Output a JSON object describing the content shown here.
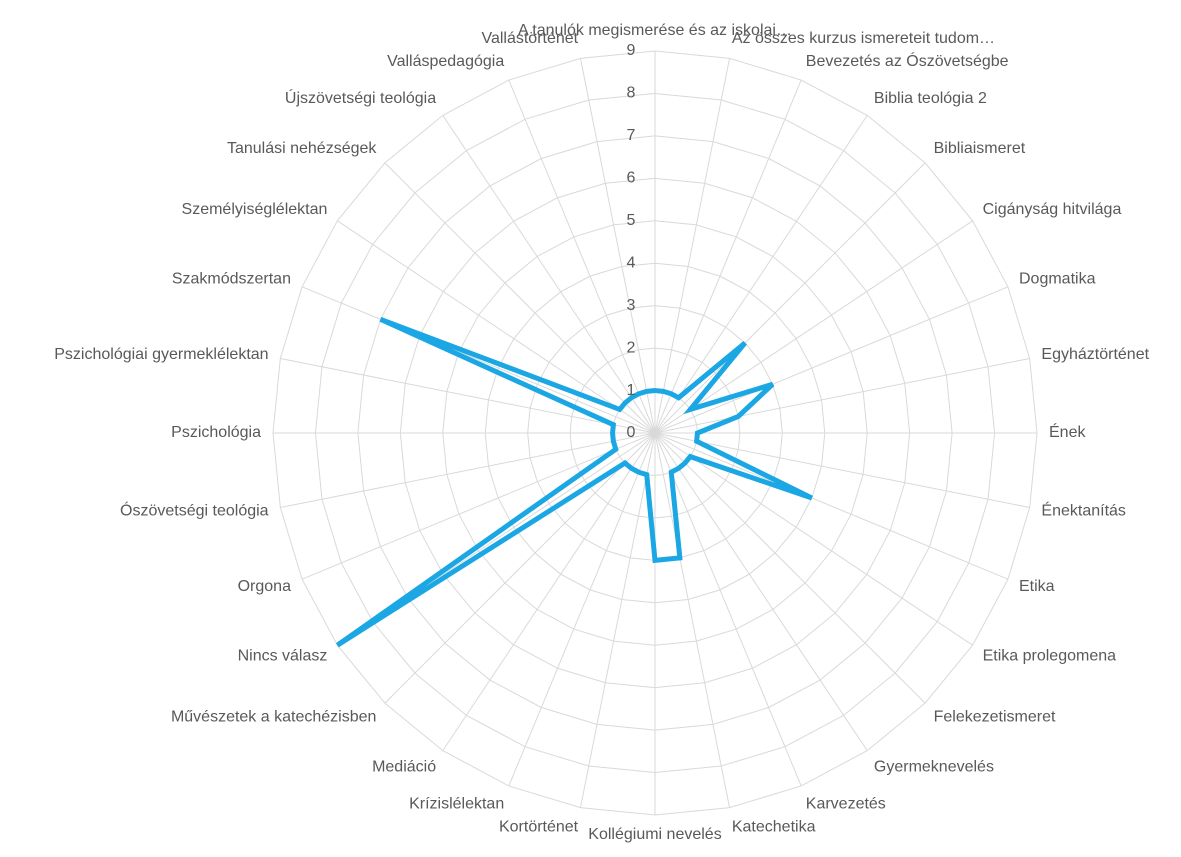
{
  "chart_data": {
    "type": "radar",
    "categories": [
      "A tanulók megismerése és az iskolai…",
      "Az összes kurzus ismereteit tudom…",
      "Bevezetés az Ószövetségbe",
      "Biblia teológia 2",
      "Bibliaismeret",
      "Cigányság hitvilága",
      "Dogmatika",
      "Egyháztörténet",
      "Ének",
      "Énektanítás",
      "Etika",
      "Etika prolegomena",
      "Felekezetismeret",
      "Gyermeknevelés",
      "Karvezetés",
      "Katechetika",
      "Kollégiumi nevelés",
      "Kortörténet",
      "Krízislélektan",
      "Mediáció",
      "Művészetek a katechézisben",
      "Nincs válasz",
      "Orgona",
      "Ószövetségi teológia",
      "Pszichológia",
      "Pszichológiai gyermeklélektan",
      "Szakmódszertan",
      "Személyiséglélektan",
      "Tanulási nehézségek",
      "Újszövetségi teológia",
      "Valláspedagógia",
      "Vallástörténet"
    ],
    "values": [
      1,
      1,
      1,
      1,
      3,
      1,
      3,
      2,
      1,
      1,
      4,
      1,
      1,
      1,
      1,
      3,
      3,
      1,
      1,
      1,
      1,
      9,
      1,
      1,
      1,
      1,
      7,
      1,
      1,
      1,
      1,
      1
    ],
    "color": "#1aa7e4",
    "ylim": [
      0,
      9
    ],
    "yticks": [
      0,
      1,
      2,
      3,
      4,
      5,
      6,
      7,
      8,
      9
    ],
    "grid": true
  }
}
